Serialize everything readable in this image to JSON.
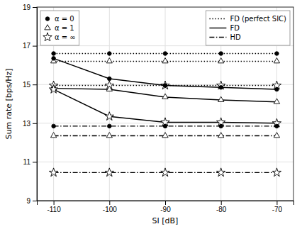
{
  "chart_data": {
    "type": "line",
    "x": [
      -110,
      -100,
      -90,
      -80,
      -70
    ],
    "xlim": [
      -113,
      -67
    ],
    "xticks": [
      -110,
      -100,
      -90,
      -80,
      -70
    ],
    "ylim": [
      9,
      19
    ],
    "yticks": [
      9,
      11,
      13,
      15,
      17,
      19
    ],
    "xlabel": "SI [dB]",
    "ylabel": "Sum rate [bps/Hz]",
    "grid": true,
    "series": [
      {
        "color": "#000000",
        "marker": "circle",
        "line_style": "dotted",
        "values": [
          16.6,
          16.6,
          16.6,
          16.6,
          16.6
        ]
      },
      {
        "color": "#000000",
        "marker": "triangle",
        "line_style": "dotted",
        "values": [
          16.2,
          16.2,
          16.2,
          16.2,
          16.2
        ]
      },
      {
        "color": "#000000",
        "marker": "star",
        "line_style": "dotted",
        "values": [
          14.95,
          14.95,
          14.95,
          14.95,
          14.95
        ]
      },
      {
        "color": "#000000",
        "marker": "circle",
        "line_style": "solid",
        "values": [
          16.35,
          15.3,
          14.95,
          14.85,
          14.75
        ]
      },
      {
        "color": "#000000",
        "marker": "triangle",
        "line_style": "solid",
        "values": [
          14.8,
          14.75,
          14.35,
          14.2,
          14.1
        ]
      },
      {
        "color": "#000000",
        "marker": "star",
        "line_style": "solid",
        "values": [
          14.75,
          13.35,
          13.05,
          13.05,
          13.0
        ]
      },
      {
        "color": "#000000",
        "marker": "circle",
        "line_style": "dashdot",
        "values": [
          12.85,
          12.85,
          12.85,
          12.85,
          12.85
        ]
      },
      {
        "color": "#000000",
        "marker": "triangle",
        "line_style": "dashdot",
        "values": [
          12.35,
          12.35,
          12.35,
          12.35,
          12.35
        ]
      },
      {
        "color": "#000000",
        "marker": "star",
        "line_style": "dashdot",
        "values": [
          10.45,
          10.45,
          10.45,
          10.45,
          10.45
        ]
      }
    ],
    "legends": [
      {
        "legend": "upper left",
        "entries": [
          {
            "label": "α = 0",
            "marker": "circle"
          },
          {
            "label": "α = 1",
            "marker": "triangle"
          },
          {
            "label": "α = ∞",
            "marker": "star"
          }
        ]
      },
      {
        "legend": "upper right",
        "entries": [
          {
            "label": "FD (perfect SIC)",
            "line_style": "dotted"
          },
          {
            "label": "FD",
            "line_style": "solid"
          },
          {
            "label": "HD",
            "line_style": "dashdot"
          }
        ]
      }
    ]
  }
}
